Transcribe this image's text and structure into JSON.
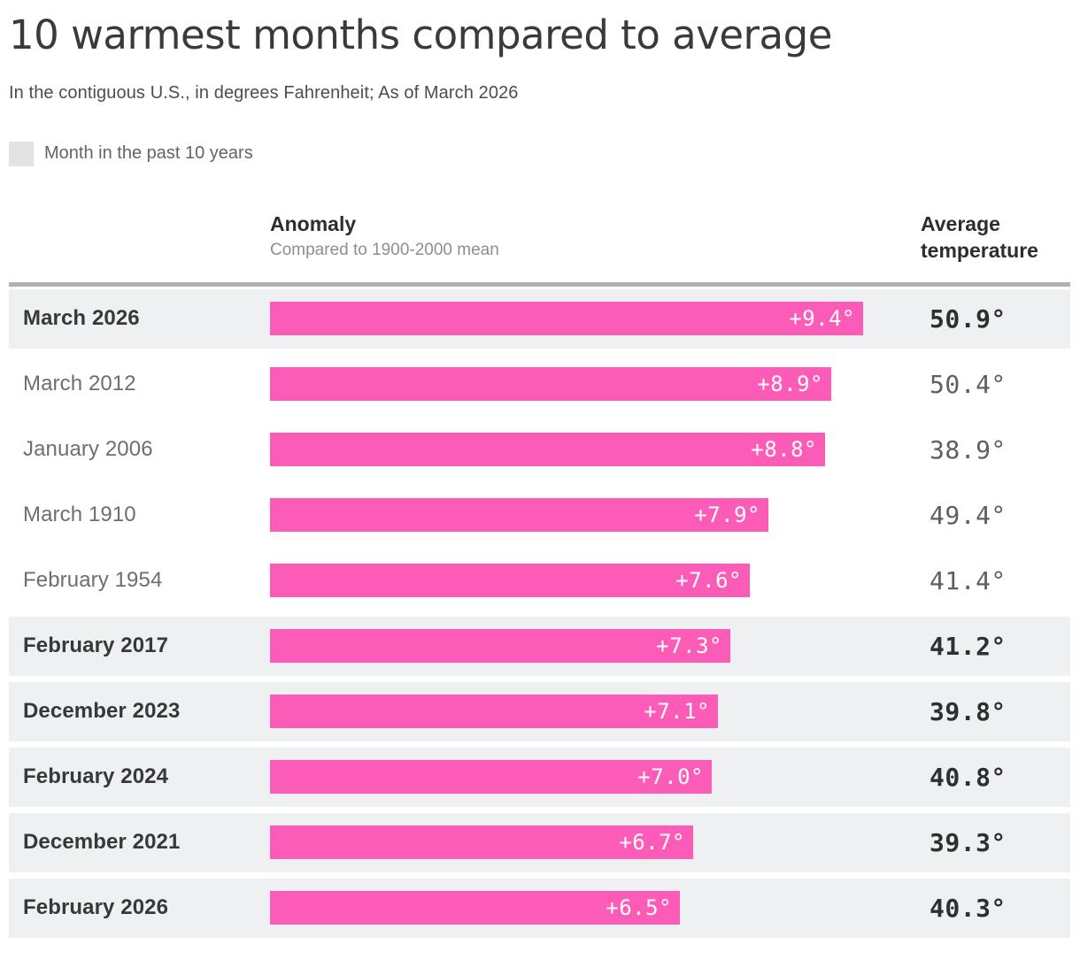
{
  "colors": {
    "accent_pink": "#fc5cb8",
    "highlight_row_bg": "#eef0f1",
    "legend_swatch_gray": "#e3e3e3",
    "table_border_gray": "#b1b1b1",
    "bar_label_text": "#ffffff"
  },
  "header": {
    "title": "10 warmest months compared to average",
    "subtitle": "In the contiguous U.S., in degrees Fahrenheit; As of March 2026",
    "legend_label": "Month in the past 10 years"
  },
  "columns": {
    "anomaly_title": "Anomaly",
    "anomaly_subtitle": "Compared to 1900-2000 mean",
    "average_title": "Average temperature"
  },
  "chart_data": {
    "type": "bar",
    "orientation": "horizontal",
    "title": "10 warmest months compared to average",
    "subtitle": "In the contiguous U.S., in degrees Fahrenheit; As of March 2026",
    "legend": [
      {
        "label": "Month in the past 10 years",
        "swatch": "#e3e3e3"
      }
    ],
    "xlabel": "Anomaly (Compared to 1900-2000 mean)",
    "xlim": [
      0,
      9.4
    ],
    "categories": [
      "March 2026",
      "March 2012",
      "January 2006",
      "March 1910",
      "February 1954",
      "February 2017",
      "December 2023",
      "February 2024",
      "December 2021",
      "February 2026"
    ],
    "values": [
      9.4,
      8.9,
      8.8,
      7.9,
      7.6,
      7.3,
      7.1,
      7.0,
      6.7,
      6.5
    ],
    "bar_labels": [
      "+9.4°",
      "+8.9°",
      "+8.8°",
      "+7.9°",
      "+7.6°",
      "+7.3°",
      "+7.1°",
      "+7.0°",
      "+6.7°",
      "+6.5°"
    ],
    "average_temperatures": [
      "50.9°",
      "50.4°",
      "38.9°",
      "49.4°",
      "41.4°",
      "41.2°",
      "39.8°",
      "40.8°",
      "39.3°",
      "40.3°"
    ],
    "month_in_past_10_years": [
      true,
      false,
      false,
      false,
      false,
      true,
      true,
      true,
      true,
      true
    ]
  }
}
